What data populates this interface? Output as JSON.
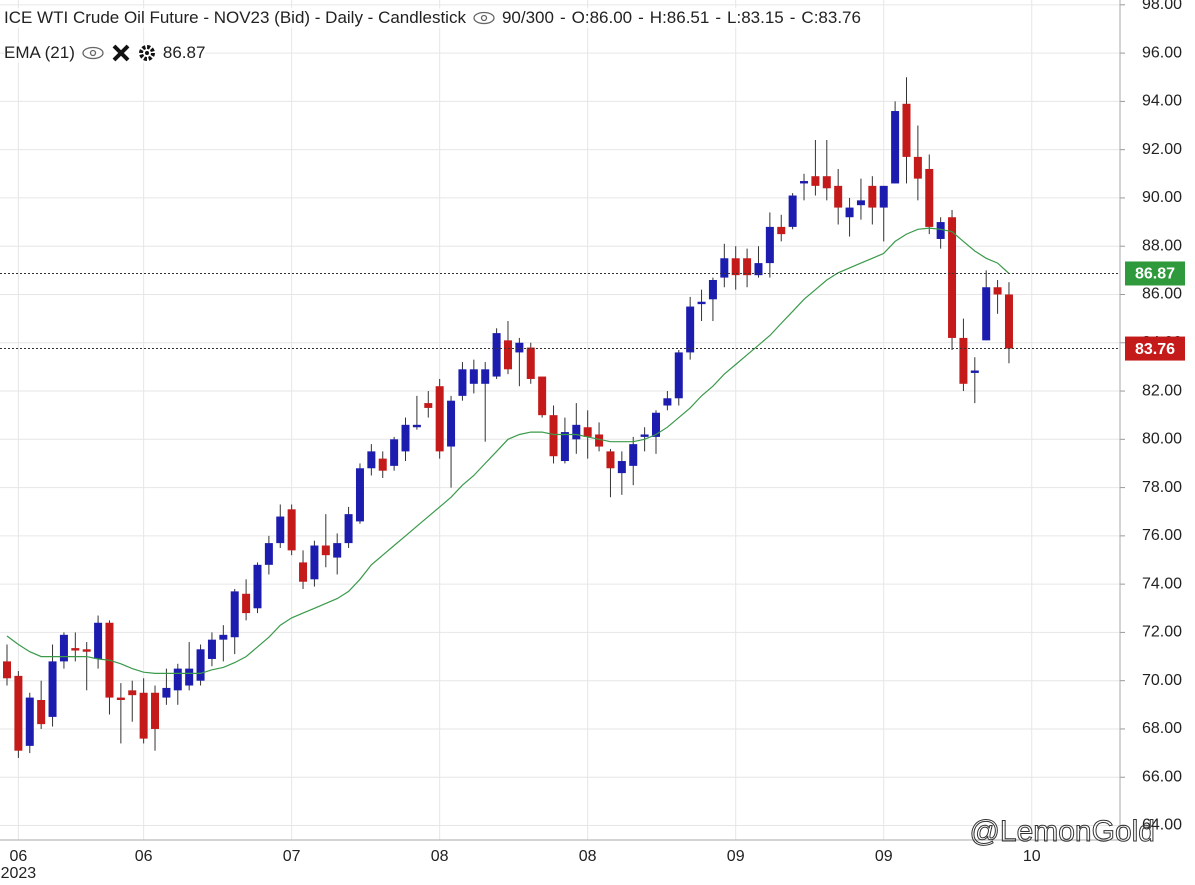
{
  "header": {
    "title": "ICE WTI Crude Oil Future - NOV23 (Bid) - Daily - Candlestick",
    "counter": "90/300",
    "ohlc_labels": [
      "O:86.00",
      "H:86.51",
      "L:83.15",
      "C:83.76"
    ],
    "indicator_name": "EMA (21)",
    "indicator_value": "86.87"
  },
  "chart_data": {
    "type": "candlestick",
    "categories": [
      null,
      "06",
      null,
      null,
      null,
      null,
      null,
      null,
      null,
      null,
      null,
      null,
      "06",
      null,
      null,
      null,
      null,
      null,
      null,
      null,
      null,
      null,
      null,
      null,
      null,
      "07",
      null,
      null,
      null,
      null,
      null,
      null,
      null,
      null,
      null,
      null,
      null,
      null,
      "08",
      null,
      null,
      null,
      null,
      null,
      null,
      null,
      null,
      null,
      null,
      null,
      null,
      "08",
      null,
      null,
      null,
      null,
      null,
      null,
      null,
      null,
      null,
      null,
      null,
      null,
      "09",
      null,
      null,
      null,
      null,
      null,
      null,
      null,
      null,
      null,
      null,
      null,
      null,
      "09",
      null,
      null,
      null,
      null,
      null,
      null,
      null,
      null,
      null,
      null,
      null,
      null,
      "10"
    ],
    "year_label": "2023",
    "up_color": "#1c1cae",
    "down_color": "#c41a1a",
    "open": [
      70.8,
      70.2,
      67.3,
      69.2,
      68.5,
      70.8,
      71.35,
      71.3,
      70.9,
      72.4,
      69.3,
      69.6,
      69.5,
      69.5,
      69.3,
      69.6,
      69.8,
      70.0,
      70.9,
      71.7,
      71.8,
      73.6,
      73.0,
      74.8,
      75.7,
      77.1,
      74.9,
      74.2,
      75.6,
      75.1,
      75.7,
      76.6,
      78.8,
      79.2,
      78.9,
      79.5,
      80.5,
      81.5,
      82.2,
      79.7,
      81.8,
      82.3,
      82.3,
      82.6,
      84.1,
      83.6,
      83.8,
      82.6,
      81.0,
      79.1,
      80.0,
      80.5,
      80.2,
      79.5,
      78.6,
      78.9,
      80.1,
      80.1,
      81.4,
      81.7,
      83.6,
      85.6,
      85.8,
      86.7,
      87.5,
      87.5,
      86.8,
      87.3,
      88.8,
      88.8,
      90.6,
      90.9,
      90.9,
      90.5,
      89.2,
      89.7,
      90.5,
      89.6,
      90.6,
      93.9,
      91.7,
      91.2,
      88.3,
      89.2,
      84.2,
      82.75,
      84.1,
      86.3,
      86.0,
      null,
      null
    ],
    "high": [
      71.5,
      70.4,
      69.5,
      70.0,
      71.5,
      72.0,
      72.0,
      71.6,
      72.7,
      72.5,
      69.9,
      70.0,
      70.1,
      69.8,
      70.5,
      70.7,
      71.6,
      71.5,
      72.0,
      72.3,
      73.8,
      74.2,
      74.9,
      76.0,
      77.3,
      77.3,
      75.4,
      75.8,
      76.9,
      76.1,
      77.2,
      79.0,
      79.8,
      79.5,
      80.1,
      80.9,
      81.8,
      82.0,
      82.5,
      81.8,
      83.2,
      83.3,
      83.2,
      84.6,
      84.9,
      84.2,
      84.0,
      82.6,
      81.4,
      80.9,
      81.5,
      81.2,
      80.7,
      79.6,
      79.5,
      80.1,
      80.5,
      81.2,
      82.0,
      83.7,
      85.9,
      86.2,
      86.7,
      88.1,
      88.0,
      87.9,
      88.0,
      89.4,
      89.3,
      90.2,
      91.0,
      92.4,
      92.4,
      91.2,
      90.0,
      90.8,
      90.9,
      90.5,
      94.0,
      95.0,
      93.0,
      91.8,
      89.2,
      89.5,
      85.0,
      83.4,
      87.0,
      86.6,
      86.51,
      null,
      null
    ],
    "low": [
      69.8,
      66.8,
      67.0,
      68.0,
      68.1,
      70.5,
      70.8,
      69.6,
      70.5,
      68.6,
      67.4,
      68.3,
      67.4,
      67.1,
      69.0,
      69.0,
      69.6,
      69.8,
      70.6,
      70.8,
      71.1,
      72.5,
      72.8,
      74.4,
      75.5,
      75.2,
      73.8,
      73.9,
      74.7,
      74.4,
      75.5,
      76.5,
      78.5,
      78.4,
      78.7,
      79.1,
      80.4,
      80.9,
      79.2,
      78.0,
      81.6,
      81.9,
      79.9,
      82.5,
      82.7,
      82.2,
      82.3,
      80.9,
      79.0,
      79.0,
      79.4,
      79.2,
      79.5,
      77.6,
      77.7,
      78.1,
      79.5,
      79.4,
      81.2,
      81.4,
      83.3,
      84.9,
      84.9,
      86.3,
      86.2,
      86.3,
      86.7,
      86.7,
      88.2,
      88.7,
      89.9,
      90.1,
      89.9,
      88.9,
      88.4,
      89.1,
      88.9,
      88.2,
      90.6,
      90.6,
      89.9,
      88.5,
      87.9,
      83.7,
      82.0,
      81.5,
      84.1,
      85.2,
      83.15,
      null,
      null
    ],
    "close": [
      70.1,
      67.1,
      69.3,
      68.2,
      70.8,
      71.9,
      71.25,
      71.2,
      72.4,
      69.3,
      69.2,
      69.4,
      67.6,
      68.0,
      69.7,
      70.5,
      70.5,
      71.3,
      71.7,
      71.9,
      73.7,
      72.8,
      74.8,
      75.7,
      76.8,
      75.4,
      74.1,
      75.6,
      75.2,
      75.7,
      76.9,
      78.8,
      79.5,
      78.7,
      80.0,
      80.6,
      80.6,
      81.3,
      79.5,
      81.6,
      82.9,
      82.9,
      82.9,
      84.4,
      82.9,
      84.0,
      82.5,
      81.0,
      79.3,
      80.3,
      80.6,
      80.1,
      79.7,
      78.8,
      79.1,
      79.8,
      80.2,
      81.1,
      81.7,
      83.6,
      85.5,
      85.7,
      86.6,
      87.5,
      86.8,
      86.8,
      87.3,
      88.8,
      88.5,
      90.1,
      90.7,
      90.5,
      90.4,
      89.6,
      89.6,
      89.9,
      89.6,
      90.5,
      93.6,
      91.7,
      90.8,
      88.8,
      89.0,
      84.2,
      82.3,
      82.85,
      86.3,
      86.0,
      83.76,
      null,
      null
    ],
    "series": [
      {
        "name": "EMA (21)",
        "color": "#3a9a4a",
        "values": [
          71.85,
          71.5,
          71.2,
          71.0,
          71.0,
          71.0,
          71.0,
          71.0,
          70.9,
          70.85,
          70.7,
          70.5,
          70.35,
          70.3,
          70.3,
          70.3,
          70.3,
          70.3,
          70.45,
          70.55,
          70.75,
          71.0,
          71.4,
          71.8,
          72.3,
          72.6,
          72.8,
          73.0,
          73.2,
          73.4,
          73.7,
          74.2,
          74.8,
          75.2,
          75.6,
          76.0,
          76.4,
          76.8,
          77.2,
          77.6,
          78.1,
          78.5,
          79.0,
          79.5,
          80.0,
          80.2,
          80.3,
          80.3,
          80.2,
          80.2,
          80.2,
          80.1,
          80.0,
          79.9,
          79.9,
          79.9,
          80.0,
          80.2,
          80.5,
          80.9,
          81.3,
          81.8,
          82.2,
          82.7,
          83.1,
          83.5,
          83.9,
          84.3,
          84.8,
          85.3,
          85.8,
          86.2,
          86.6,
          86.9,
          87.1,
          87.3,
          87.5,
          87.7,
          88.2,
          88.5,
          88.7,
          88.75,
          88.7,
          88.6,
          88.2,
          87.8,
          87.5,
          87.3,
          86.87,
          null,
          null
        ]
      }
    ],
    "markers": [
      {
        "value": 86.87,
        "color": "#2e9a3c"
      },
      {
        "value": 83.76,
        "color": "#c41a1a"
      }
    ],
    "ylim": [
      63.4,
      98.2
    ],
    "yticks": [
      {
        "value": 64,
        "label": "64.00"
      },
      {
        "value": 66,
        "label": "66.00"
      },
      {
        "value": 68,
        "label": "68.00"
      },
      {
        "value": 70,
        "label": "70.00"
      },
      {
        "value": 72,
        "label": "72.00"
      },
      {
        "value": 74,
        "label": "74.00"
      },
      {
        "value": 76,
        "label": "76.00"
      },
      {
        "value": 78,
        "label": "78.00"
      },
      {
        "value": 80,
        "label": "80.00"
      },
      {
        "value": 82,
        "label": "82.00"
      },
      {
        "value": 84,
        "label": "84.00"
      },
      {
        "value": 86,
        "label": "86.00"
      },
      {
        "value": 88,
        "label": "88.00"
      },
      {
        "value": 90,
        "label": "90.00"
      },
      {
        "value": 92,
        "label": "92.00"
      },
      {
        "value": 94,
        "label": "94.00"
      },
      {
        "value": 96,
        "label": "96.00"
      },
      {
        "value": 98,
        "label": "98.00"
      }
    ],
    "grid": true,
    "watermark": "@LemonGold"
  }
}
